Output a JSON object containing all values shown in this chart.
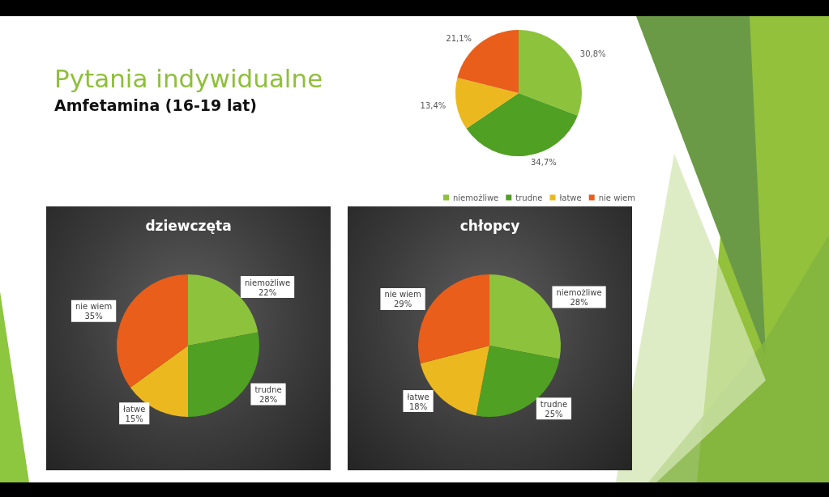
{
  "chart_data": [
    {
      "type": "pie",
      "title": "Pytania indywidualne",
      "subtitle": "Amfetamina (16-19 lat)",
      "categories": [
        "niemożliwe",
        "trudne",
        "łatwe",
        "nie wiem"
      ],
      "values": [
        30.8,
        34.7,
        13.4,
        21.1
      ],
      "colors": [
        "#8dc33c",
        "#50a024",
        "#ecb820",
        "#e85e1a"
      ],
      "value_labels": [
        "30,8%",
        "34,7%",
        "13,4%",
        "21,1%"
      ],
      "legend": "bottom"
    },
    {
      "type": "pie",
      "title": "dziewczęta",
      "categories": [
        "niemożliwe",
        "trudne",
        "łatwe",
        "nie wiem"
      ],
      "values": [
        22,
        28,
        15,
        35
      ],
      "colors": [
        "#8dc33c",
        "#50a024",
        "#ecb820",
        "#e85e1a"
      ],
      "value_labels": [
        "22%",
        "28%",
        "15%",
        "35%"
      ]
    },
    {
      "type": "pie",
      "title": "chłopcy",
      "categories": [
        "niemożliwe",
        "trudne",
        "łatwe",
        "nie wiem"
      ],
      "values": [
        28,
        25,
        18,
        29
      ],
      "colors": [
        "#8dc33c",
        "#50a024",
        "#ecb820",
        "#e85e1a"
      ],
      "value_labels": [
        "28%",
        "25%",
        "18%",
        "29%"
      ]
    }
  ]
}
